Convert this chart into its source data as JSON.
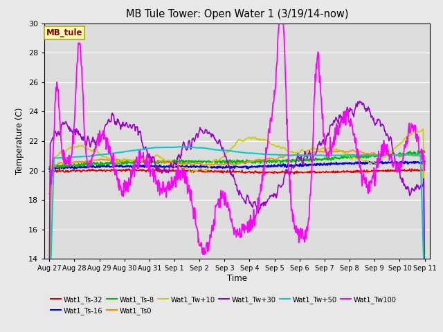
{
  "title": "MB Tule Tower: Open Water 1 (3/19/14-now)",
  "xlabel": "Time",
  "ylabel": "Temperature (C)",
  "ylim": [
    14,
    30
  ],
  "yticks": [
    14,
    16,
    18,
    20,
    22,
    24,
    26,
    28,
    30
  ],
  "fig_facecolor": "#e8e8e8",
  "ax_facecolor": "#dcdcdc",
  "series": [
    {
      "label": "Wat1_Ts-32",
      "color": "#dd0000"
    },
    {
      "label": "Wat1_Ts-16",
      "color": "#0000dd"
    },
    {
      "label": "Wat1_Ts-8",
      "color": "#00bb00"
    },
    {
      "label": "Wat1_Ts0",
      "color": "#ff8800"
    },
    {
      "label": "Wat1_Tw+10",
      "color": "#cccc00"
    },
    {
      "label": "Wat1_Tw+30",
      "color": "#9900cc"
    },
    {
      "label": "Wat1_Tw+50",
      "color": "#00cccc"
    },
    {
      "label": "Wat1_Tw100",
      "color": "#ff00ff"
    }
  ],
  "tick_labels": [
    "Aug 27",
    "Aug 28",
    "Aug 29",
    "Aug 30",
    "Aug 31",
    "Sep 1",
    "Sep 2",
    "Sep 3",
    "Sep 4",
    "Sep 5",
    "Sep 6",
    "Sep 7",
    "Sep 8",
    "Sep 9",
    "Sep 10",
    "Sep 11"
  ],
  "annotation": {
    "text": "MB_tule",
    "text_color": "#880000",
    "box_facecolor": "#ffffbb",
    "box_edgecolor": "#aaaa00"
  }
}
